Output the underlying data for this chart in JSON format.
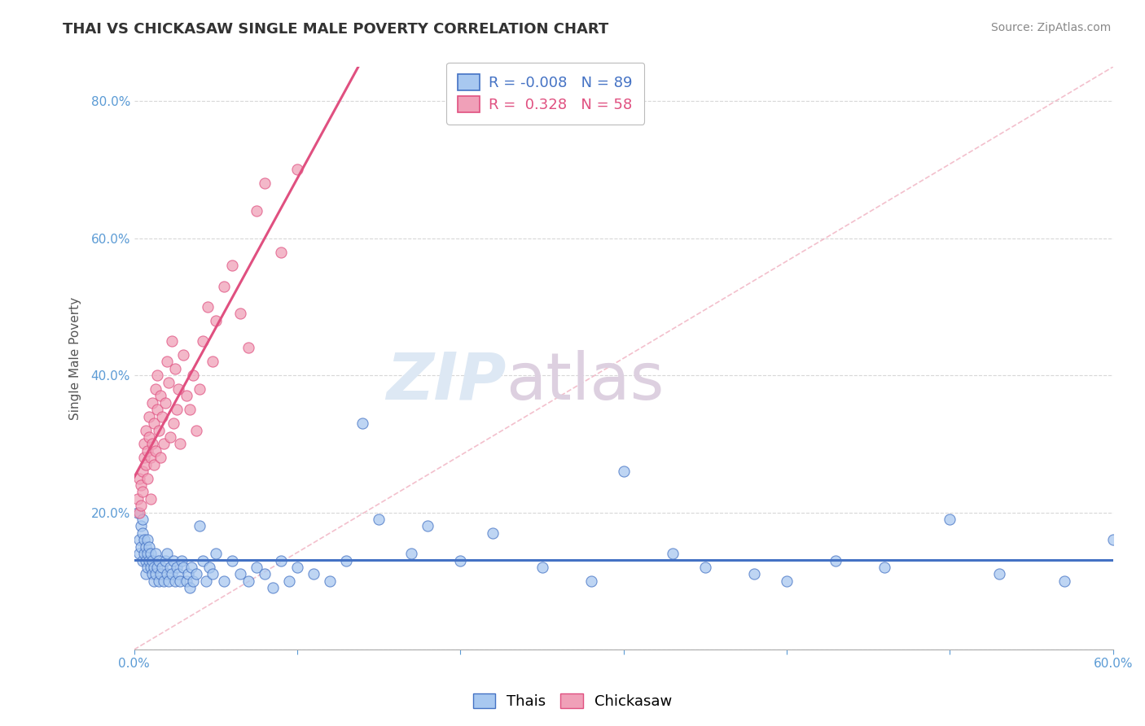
{
  "title": "THAI VS CHICKASAW SINGLE MALE POVERTY CORRELATION CHART",
  "source": "Source: ZipAtlas.com",
  "ylabel": "Single Male Poverty",
  "legend_thais": "Thais",
  "legend_chickasaw": "Chickasaw",
  "r_thais": -0.008,
  "n_thais": 89,
  "r_chickasaw": 0.328,
  "n_chickasaw": 58,
  "color_thais_fill": "#a8c8f0",
  "color_chickasaw_fill": "#f0a0b8",
  "color_thais_edge": "#4472c4",
  "color_chickasaw_edge": "#e05080",
  "color_thais_line": "#4472c4",
  "color_chickasaw_line": "#e05080",
  "color_ref_line": "#f0b0c0",
  "xmin": 0.0,
  "xmax": 0.6,
  "ymin": 0.0,
  "ymax": 0.85,
  "background_color": "#ffffff",
  "grid_color": "#d8d8d8",
  "watermark_zip": "ZIP",
  "watermark_atlas": "atlas",
  "watermark_color": "#dde8f4",
  "watermark_color2": "#ddd0e0",
  "thais_x": [
    0.002,
    0.003,
    0.003,
    0.004,
    0.004,
    0.005,
    0.005,
    0.005,
    0.006,
    0.006,
    0.007,
    0.007,
    0.007,
    0.008,
    0.008,
    0.008,
    0.009,
    0.009,
    0.01,
    0.01,
    0.011,
    0.011,
    0.012,
    0.012,
    0.013,
    0.013,
    0.014,
    0.015,
    0.015,
    0.016,
    0.017,
    0.018,
    0.019,
    0.02,
    0.02,
    0.021,
    0.022,
    0.023,
    0.024,
    0.025,
    0.026,
    0.027,
    0.028,
    0.029,
    0.03,
    0.032,
    0.033,
    0.034,
    0.035,
    0.036,
    0.038,
    0.04,
    0.042,
    0.044,
    0.046,
    0.048,
    0.05,
    0.055,
    0.06,
    0.065,
    0.07,
    0.075,
    0.08,
    0.085,
    0.09,
    0.095,
    0.1,
    0.11,
    0.12,
    0.13,
    0.14,
    0.15,
    0.17,
    0.18,
    0.2,
    0.22,
    0.25,
    0.28,
    0.3,
    0.33,
    0.35,
    0.38,
    0.4,
    0.43,
    0.46,
    0.5,
    0.53,
    0.57,
    0.6
  ],
  "thais_y": [
    0.2,
    0.16,
    0.14,
    0.18,
    0.15,
    0.17,
    0.13,
    0.19,
    0.16,
    0.14,
    0.15,
    0.13,
    0.11,
    0.14,
    0.12,
    0.16,
    0.13,
    0.15,
    0.12,
    0.14,
    0.11,
    0.13,
    0.1,
    0.12,
    0.11,
    0.14,
    0.12,
    0.1,
    0.13,
    0.11,
    0.12,
    0.1,
    0.13,
    0.11,
    0.14,
    0.1,
    0.12,
    0.11,
    0.13,
    0.1,
    0.12,
    0.11,
    0.1,
    0.13,
    0.12,
    0.1,
    0.11,
    0.09,
    0.12,
    0.1,
    0.11,
    0.18,
    0.13,
    0.1,
    0.12,
    0.11,
    0.14,
    0.1,
    0.13,
    0.11,
    0.1,
    0.12,
    0.11,
    0.09,
    0.13,
    0.1,
    0.12,
    0.11,
    0.1,
    0.13,
    0.33,
    0.19,
    0.14,
    0.18,
    0.13,
    0.17,
    0.12,
    0.1,
    0.26,
    0.14,
    0.12,
    0.11,
    0.1,
    0.13,
    0.12,
    0.19,
    0.11,
    0.1,
    0.16
  ],
  "chickasaw_x": [
    0.002,
    0.003,
    0.003,
    0.004,
    0.004,
    0.005,
    0.005,
    0.006,
    0.006,
    0.007,
    0.007,
    0.008,
    0.008,
    0.009,
    0.009,
    0.01,
    0.01,
    0.011,
    0.011,
    0.012,
    0.012,
    0.013,
    0.013,
    0.014,
    0.014,
    0.015,
    0.016,
    0.016,
    0.017,
    0.018,
    0.019,
    0.02,
    0.021,
    0.022,
    0.023,
    0.024,
    0.025,
    0.026,
    0.027,
    0.028,
    0.03,
    0.032,
    0.034,
    0.036,
    0.038,
    0.04,
    0.042,
    0.045,
    0.048,
    0.05,
    0.055,
    0.06,
    0.065,
    0.07,
    0.075,
    0.08,
    0.09,
    0.1
  ],
  "chickasaw_y": [
    0.22,
    0.25,
    0.2,
    0.24,
    0.21,
    0.26,
    0.23,
    0.28,
    0.3,
    0.27,
    0.32,
    0.29,
    0.25,
    0.31,
    0.34,
    0.28,
    0.22,
    0.3,
    0.36,
    0.33,
    0.27,
    0.38,
    0.29,
    0.35,
    0.4,
    0.32,
    0.37,
    0.28,
    0.34,
    0.3,
    0.36,
    0.42,
    0.39,
    0.31,
    0.45,
    0.33,
    0.41,
    0.35,
    0.38,
    0.3,
    0.43,
    0.37,
    0.35,
    0.4,
    0.32,
    0.38,
    0.45,
    0.5,
    0.42,
    0.48,
    0.53,
    0.56,
    0.49,
    0.44,
    0.64,
    0.68,
    0.58,
    0.7
  ]
}
